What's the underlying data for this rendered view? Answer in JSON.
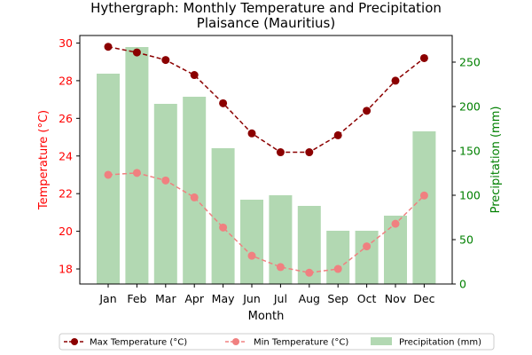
{
  "chart_data": {
    "type": "bar+line",
    "title": "Hythergraph: Monthly Temperature and Precipitation",
    "subtitle": "Plaisance (Mauritius)",
    "xlabel": "Month",
    "ylabel_left": "Temperature (°C)",
    "ylabel_right": "Precipitation (mm)",
    "categories": [
      "Jan",
      "Feb",
      "Mar",
      "Apr",
      "May",
      "Jun",
      "Jul",
      "Aug",
      "Sep",
      "Oct",
      "Nov",
      "Dec"
    ],
    "ylim_left": [
      17.2,
      30.4
    ],
    "ylim_right": [
      0,
      280
    ],
    "yticks_left": [
      18,
      20,
      22,
      24,
      26,
      28,
      30
    ],
    "yticks_right": [
      0,
      50,
      100,
      150,
      200,
      250
    ],
    "series": [
      {
        "name": "Max Temperature (°C)",
        "axis": "left",
        "kind": "line",
        "color": "#8b0000",
        "values": [
          29.8,
          29.5,
          29.1,
          28.3,
          26.8,
          25.2,
          24.2,
          24.2,
          25.1,
          26.4,
          28.0,
          29.2
        ]
      },
      {
        "name": "Min Temperature (°C)",
        "axis": "left",
        "kind": "line",
        "color": "#f08080",
        "values": [
          23.0,
          23.1,
          22.7,
          21.8,
          20.2,
          18.7,
          18.1,
          17.8,
          18.0,
          19.2,
          20.4,
          21.9
        ]
      },
      {
        "name": "Precipitation (mm)",
        "axis": "right",
        "kind": "bar",
        "color": "#b2d8b2",
        "values": [
          237,
          267,
          203,
          211,
          153,
          95,
          100,
          88,
          60,
          60,
          77,
          172
        ]
      }
    ],
    "legend": {
      "placement": "bottom-center"
    },
    "grid": false,
    "colors": {
      "left_axis": "#ff0000",
      "right_axis": "#008000"
    }
  }
}
